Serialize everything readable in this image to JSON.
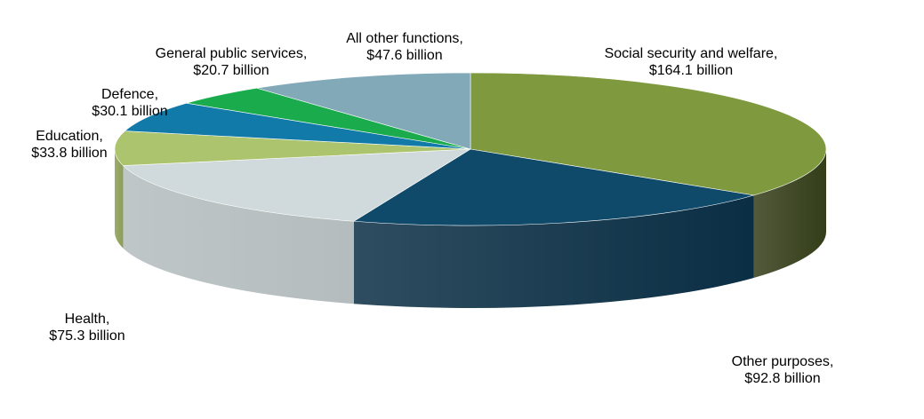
{
  "chart_data": {
    "type": "pie",
    "title": "",
    "unit": "$ billion",
    "slices": [
      {
        "name": "Social security and welfare",
        "value": 164.1,
        "label_line1": "Social security and welfare,",
        "label_line2": "$164.1 billion",
        "color": "#7f9a3e",
        "side_color": "#333d18"
      },
      {
        "name": "Other purposes",
        "value": 92.8,
        "label_line1": "Other purposes,",
        "label_line2": "$92.8 billion",
        "color": "#0f4a6b",
        "side_color": "#0a2e44"
      },
      {
        "name": "Health",
        "value": 75.3,
        "label_line1": "Health,",
        "label_line2": "$75.3 billion",
        "color": "#d0d9db",
        "side_color": "#b4bcbe"
      },
      {
        "name": "Education",
        "value": 33.8,
        "label_line1": "Education,",
        "label_line2": "$33.8 billion",
        "color": "#adc46e",
        "side_color": "#8a9d56"
      },
      {
        "name": "Defence",
        "value": 30.1,
        "label_line1": "Defence,",
        "label_line2": "$30.1 billion",
        "color": "#117aa8",
        "side_color": "#0c5b7e"
      },
      {
        "name": "General public services",
        "value": 20.7,
        "label_line1": "General public services,",
        "label_line2": "$20.7 billion",
        "color": "#1aab4c",
        "side_color": "#128038"
      },
      {
        "name": "All other functions",
        "value": 47.6,
        "label_line1": "All other functions,",
        "label_line2": "$47.6 billion",
        "color": "#82a9b8",
        "side_color": "#628593"
      }
    ]
  }
}
